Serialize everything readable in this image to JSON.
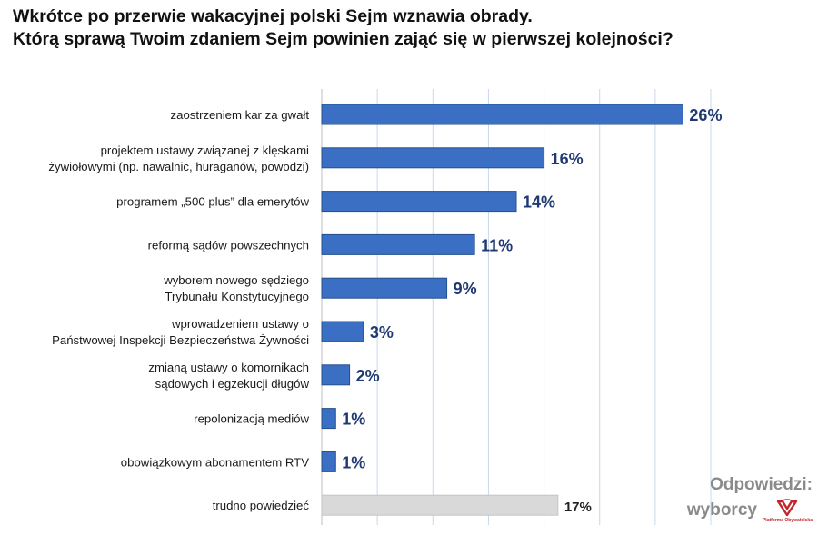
{
  "title": {
    "line1": "Wkrótce po przerwie wakacyjnej polski Sejm wznawia obrady.",
    "line2": "Którą sprawą Twoim zdaniem Sejm powinien zająć się w pierwszej kolejności?"
  },
  "footer": {
    "label": "Odpowiedzi:",
    "party": "wyborcy",
    "logo_icon": "platforma-obywatelska-logo",
    "logo_text": "Platforma Obywatelska"
  },
  "colors": {
    "bar": "#3a6fc4",
    "bar_border": "#24508f",
    "bar_neutral": "#d9d9d9",
    "value_label": "#1f3a72",
    "value_label_neutral": "#222222",
    "grid": "#c8d8ec"
  },
  "chart_data": {
    "type": "bar",
    "orientation": "horizontal",
    "title": "Wkrótce po przerwie wakacyjnej polski Sejm wznawia obrady. Którą sprawą Twoim zdaniem Sejm powinien zająć się w pierwszej kolejności?",
    "categories": [
      [
        "zaostrzeniem kar za gwałt"
      ],
      [
        "projektem ustawy związanej z klęskami",
        "żywiołowymi (np. nawalnic, huraganów, powodzi)"
      ],
      [
        "programem „500 plus” dla emerytów"
      ],
      [
        "reformą sądów powszechnych"
      ],
      [
        "wyborem nowego sędziego",
        "Trybunału Konstytucyjnego"
      ],
      [
        "wprowadzeniem ustawy o",
        "Państwowej Inspekcji Bezpieczeństwa Żywności"
      ],
      [
        "zmianą ustawy o komornikach",
        "sądowych i egzekucji długów"
      ],
      [
        "repolonizacją mediów"
      ],
      [
        "obowiązkowym abonamentem RTV"
      ],
      [
        "trudno powiedzieć"
      ]
    ],
    "values": [
      26,
      16,
      14,
      11,
      9,
      3,
      2,
      1,
      1,
      17
    ],
    "value_labels": [
      "26%",
      "16%",
      "14%",
      "11%",
      "9%",
      "3%",
      "2%",
      "1%",
      "1%",
      "17%"
    ],
    "neutral": [
      false,
      false,
      false,
      false,
      false,
      false,
      false,
      false,
      false,
      true
    ],
    "unit": "%",
    "xlim": [
      0,
      28
    ],
    "grid_step": 4,
    "grid": true,
    "legend": "none"
  }
}
